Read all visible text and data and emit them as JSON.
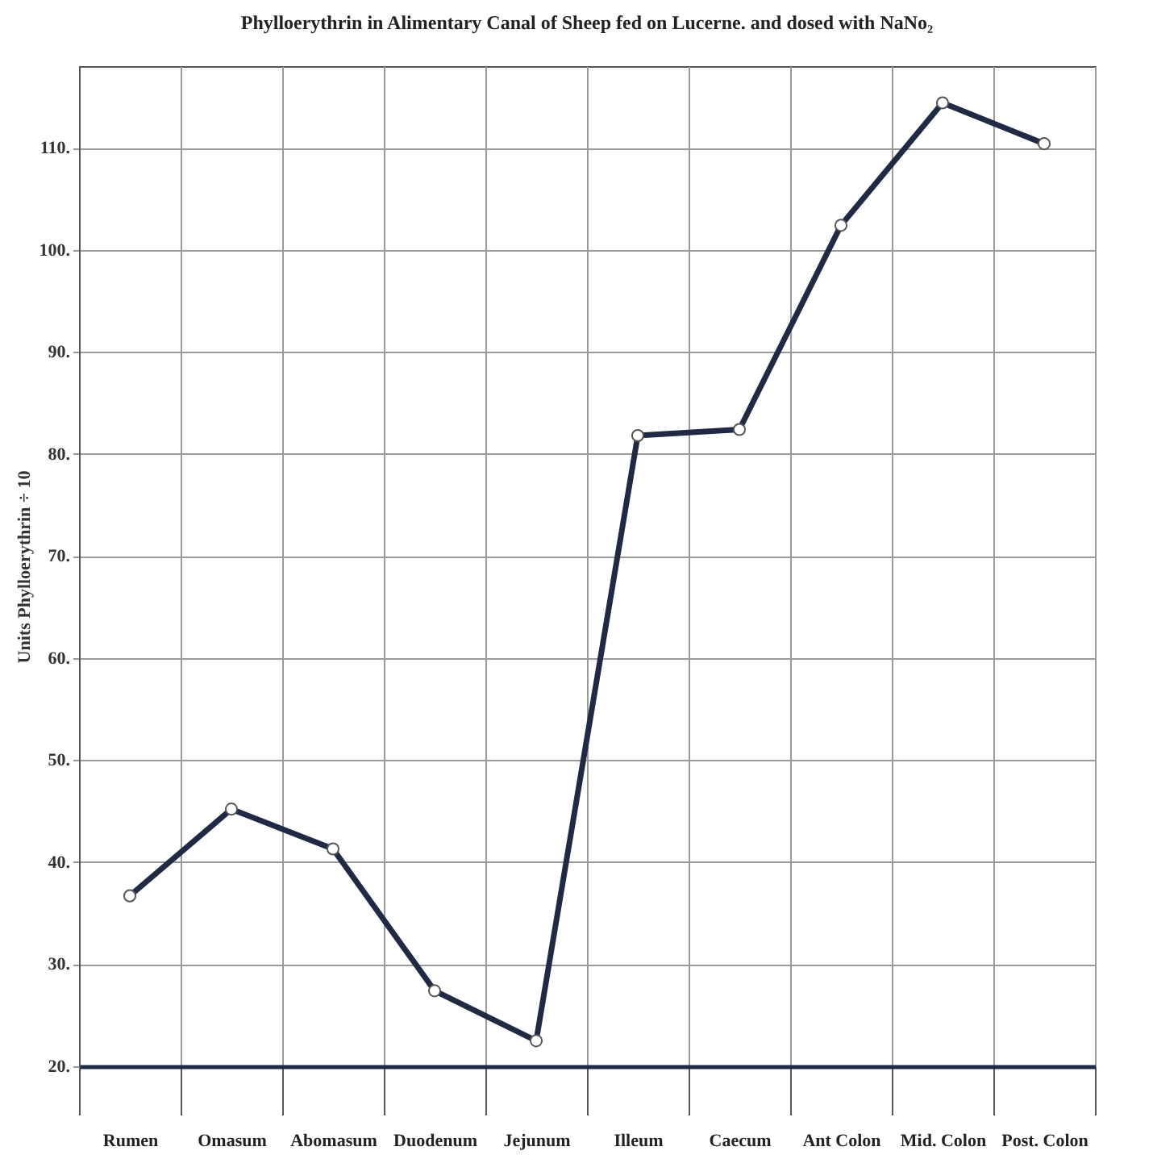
{
  "chart_data": {
    "type": "line",
    "title": "Phylloerythrin in Alimentary Canal of Sheep fed on Lucerne. and dosed with NaNo₂",
    "ylabel": "Units Phylloerythrin ÷ 10",
    "categories": [
      "Rumen",
      "Omasum",
      "Abomasum",
      "Duodenum",
      "Jejunum",
      "Illeum",
      "Caecum",
      "Ant Colon",
      "Mid. Colon",
      "Post. Colon"
    ],
    "series": [
      {
        "color": "#1f2a44",
        "values": [
          36.7,
          45.2,
          41.3,
          27.4,
          22.5,
          81.8,
          82.4,
          102.4,
          114.4,
          110.4
        ]
      }
    ],
    "ylim": [
      20,
      118
    ],
    "yticks": [
      {
        "value": 20,
        "label": "20."
      },
      {
        "value": 30,
        "label": "30."
      },
      {
        "value": 40,
        "label": "40."
      },
      {
        "value": 50,
        "label": "50."
      },
      {
        "value": 60,
        "label": "60."
      },
      {
        "value": 70,
        "label": "70."
      },
      {
        "value": 80,
        "label": "80."
      },
      {
        "value": 90,
        "label": "90."
      },
      {
        "value": 100,
        "label": "100."
      },
      {
        "value": 110,
        "label": "110."
      }
    ],
    "grid": true,
    "marker": "circle",
    "line_style": "solid"
  }
}
